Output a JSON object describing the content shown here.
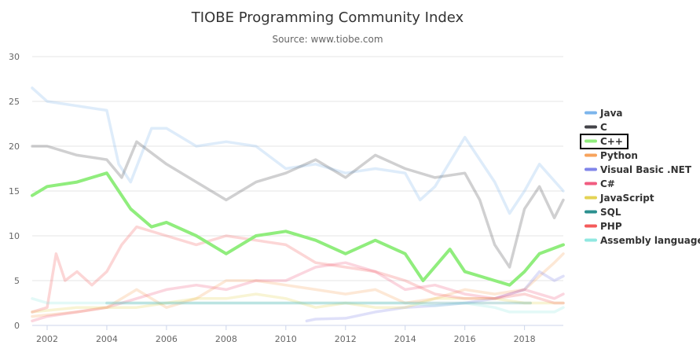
{
  "chart_data": {
    "type": "line",
    "title": "TIOBE Programming Community Index",
    "subtitle": "Source: www.tiobe.com",
    "xlabel": "",
    "ylabel": "",
    "xlim": [
      2001.5,
      2019.3
    ],
    "ylim": [
      0,
      30
    ],
    "yticks": [
      0,
      5,
      10,
      15,
      20,
      25,
      30
    ],
    "xticks": [
      2002,
      2004,
      2006,
      2008,
      2010,
      2012,
      2014,
      2016,
      2018
    ],
    "grid": "horizontal",
    "legend_position": "right",
    "highlighted_series": "C++",
    "series": [
      {
        "name": "Java",
        "color": "#7cb5ec",
        "x": [
          2001.5,
          2002,
          2003,
          2004,
          2004.4,
          2004.8,
          2005.5,
          2006,
          2007,
          2008,
          2009,
          2010,
          2011,
          2012,
          2013,
          2014,
          2014.5,
          2015,
          2016,
          2017,
          2017.5,
          2018,
          2018.5,
          2019.3
        ],
        "values": [
          26.5,
          25,
          24.5,
          24,
          18,
          16,
          22,
          22,
          20,
          20.5,
          20,
          17.5,
          18,
          17,
          17.5,
          17,
          14,
          15.5,
          21,
          16,
          12.5,
          15,
          18,
          15
        ]
      },
      {
        "name": "C",
        "color": "#434348",
        "x": [
          2001.5,
          2002,
          2003,
          2004,
          2004.5,
          2005,
          2006,
          2007,
          2008,
          2009,
          2010,
          2011,
          2012,
          2013,
          2014,
          2015,
          2016,
          2016.5,
          2017,
          2017.5,
          2018,
          2018.5,
          2019,
          2019.3
        ],
        "values": [
          20,
          20,
          19,
          18.5,
          16.5,
          20.5,
          18,
          16,
          14,
          16,
          17,
          18.5,
          16.5,
          19,
          17.5,
          16.5,
          17,
          14,
          9,
          6.5,
          13,
          15.5,
          12,
          14
        ]
      },
      {
        "name": "C++",
        "color": "#90ed7d",
        "x": [
          2001.5,
          2002,
          2003,
          2004,
          2004.4,
          2004.8,
          2005.5,
          2006,
          2007,
          2008,
          2009,
          2010,
          2011,
          2012,
          2013,
          2014,
          2014.6,
          2015.5,
          2016,
          2017,
          2017.5,
          2018,
          2018.5,
          2019.3
        ],
        "values": [
          14.5,
          15.5,
          16,
          17,
          15,
          13,
          11,
          11.5,
          10,
          8,
          10,
          10.5,
          9.5,
          8,
          9.5,
          8,
          5,
          8.5,
          6,
          5,
          4.5,
          6,
          8,
          9
        ]
      },
      {
        "name": "Python",
        "color": "#f7a35c",
        "x": [
          2001.5,
          2003,
          2004,
          2005,
          2006,
          2007,
          2008,
          2009,
          2010,
          2011,
          2012,
          2013,
          2014,
          2015,
          2016,
          2017,
          2018,
          2019,
          2019.3
        ],
        "values": [
          1,
          1.5,
          2,
          4,
          2,
          3,
          5,
          5,
          4.5,
          4,
          3.5,
          4,
          2.5,
          3,
          4,
          3.5,
          4,
          7,
          8
        ]
      },
      {
        "name": "Visual Basic .NET",
        "color": "#8085e9",
        "x": [
          2010.7,
          2011,
          2012,
          2013,
          2014,
          2015,
          2016,
          2017,
          2018,
          2018.5,
          2019,
          2019.3
        ],
        "values": [
          0.5,
          0.7,
          0.8,
          1.5,
          2,
          2.2,
          2.5,
          3,
          4,
          6,
          5,
          5.5
        ]
      },
      {
        "name": "C#",
        "color": "#f15c80",
        "x": [
          2001.5,
          2002,
          2003,
          2004,
          2005,
          2006,
          2007,
          2008,
          2009,
          2010,
          2011,
          2012,
          2013,
          2014,
          2015,
          2016,
          2017,
          2018,
          2019,
          2019.3
        ],
        "values": [
          0.5,
          1,
          1.5,
          2,
          3,
          4,
          4.5,
          4,
          5,
          5,
          6.5,
          7,
          6,
          4,
          4.5,
          3.5,
          3,
          4,
          3,
          3.5
        ]
      },
      {
        "name": "JavaScript",
        "color": "#e4d354",
        "x": [
          2001.5,
          2003,
          2004,
          2005,
          2006,
          2007,
          2008,
          2009,
          2010,
          2011,
          2012,
          2013,
          2014,
          2015,
          2016,
          2017,
          2018,
          2019,
          2019.3
        ],
        "values": [
          1.5,
          2,
          2,
          2,
          2.5,
          3,
          3,
          3.5,
          3,
          2,
          2.5,
          2,
          2,
          3,
          3,
          3,
          2.5,
          2.5,
          2.5
        ]
      },
      {
        "name": "SQL",
        "color": "#2b908f",
        "x": [
          2004,
          2018.2
        ],
        "values": [
          2.5,
          2.5
        ]
      },
      {
        "name": "PHP",
        "color": "#f45b5b",
        "x": [
          2001.5,
          2002,
          2002.3,
          2002.6,
          2003,
          2003.5,
          2004,
          2004.5,
          2005,
          2006,
          2007,
          2008,
          2009,
          2010,
          2011,
          2012,
          2013,
          2014,
          2015,
          2016,
          2017,
          2018,
          2019,
          2019.3
        ],
        "values": [
          1.5,
          2,
          8,
          5,
          6,
          4.5,
          6,
          9,
          11,
          10,
          9,
          10,
          9.5,
          9,
          7,
          6.5,
          6,
          5,
          3.5,
          3,
          3,
          3.5,
          2.5,
          2.5
        ]
      },
      {
        "name": "Assembly language",
        "color": "#91e8e1",
        "x": [
          2001.5,
          2002,
          2003,
          2004,
          2012,
          2013,
          2014,
          2015,
          2016,
          2017,
          2017.5,
          2018,
          2019,
          2019.3
        ],
        "values": [
          3,
          2.5,
          2.5,
          2.5,
          2.5,
          2.5,
          2.5,
          2.2,
          2.5,
          2,
          1.5,
          1.5,
          1.5,
          2
        ]
      }
    ]
  }
}
